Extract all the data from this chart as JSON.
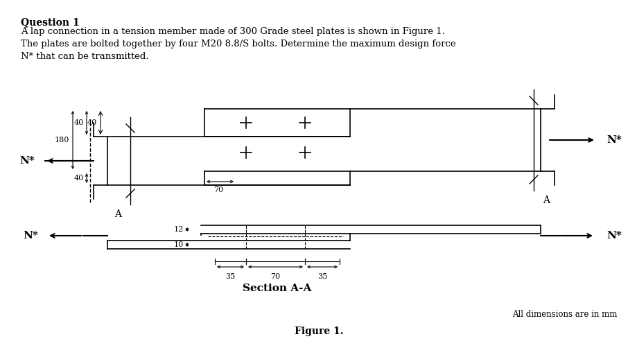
{
  "title": "Figure 1.",
  "question_title": "Question 1",
  "question_text": "A lap connection in a tension member made of 300 Grade steel plates is shown in Figure 1.\nThe plates are bolted together by four M20 8.8/S bolts. Determine the maximum design force\nN* that can be transmitted.",
  "note": "All dimensions are in mm",
  "section_label": "Section A-A",
  "bg_color": "#ffffff",
  "line_color": "#000000",
  "dim_40_top": "40",
  "dim_40_bot": "40",
  "dim_180": "180",
  "dim_70": "70",
  "dim_12": "12",
  "dim_10": "10",
  "dim_35_left": "35",
  "dim_70_mid": "70",
  "dim_35_right": "35",
  "label_A_left": "A",
  "label_A_right": "A",
  "label_Nstar": "N*"
}
